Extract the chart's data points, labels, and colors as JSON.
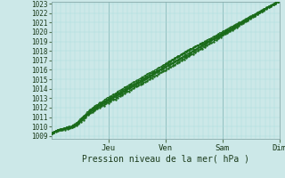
{
  "xlabel": "Pression niveau de la mer( hPa )",
  "ylim_min": 1009,
  "ylim_max": 1023,
  "yticks": [
    1009,
    1010,
    1011,
    1012,
    1013,
    1014,
    1015,
    1016,
    1017,
    1018,
    1019,
    1020,
    1021,
    1022,
    1023
  ],
  "day_labels": [
    "Jeu",
    "Ven",
    "Sam",
    "Dim"
  ],
  "day_positions": [
    0.25,
    0.5,
    0.75,
    1.0
  ],
  "bg_color": "#cce8e8",
  "grid_major_color": "#88bbbb",
  "grid_minor_color": "#aadddd",
  "line_color": "#1a6b1a",
  "line_color2": "#2d8b2d",
  "n_points": 300
}
